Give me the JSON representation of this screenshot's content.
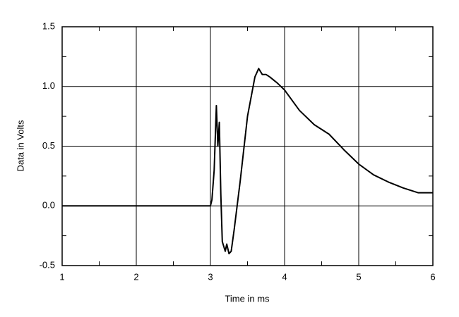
{
  "chart_data": {
    "type": "line",
    "x_label": "Time in ms",
    "y_label": "Data in Volts",
    "x": [
      1,
      3.0,
      3.02,
      3.05,
      3.08,
      3.1,
      3.12,
      3.14,
      3.16,
      3.2,
      3.22,
      3.25,
      3.28,
      3.32,
      3.4,
      3.5,
      3.6,
      3.65,
      3.7,
      3.75,
      3.8,
      3.9,
      4.0,
      4.2,
      4.4,
      4.6,
      4.8,
      5.0,
      5.2,
      5.4,
      5.6,
      5.8,
      6.0
    ],
    "series": [
      {
        "color": "#000000",
        "values": [
          0,
          0,
          0.05,
          0.3,
          0.84,
          0.5,
          0.7,
          0.1,
          -0.3,
          -0.38,
          -0.32,
          -0.4,
          -0.38,
          -0.2,
          0.2,
          0.75,
          1.08,
          1.15,
          1.1,
          1.1,
          1.08,
          1.03,
          0.97,
          0.8,
          0.68,
          0.6,
          0.47,
          0.35,
          0.26,
          0.2,
          0.15,
          0.11,
          0.11
        ]
      }
    ],
    "xlim": [
      1,
      6
    ],
    "xticks": [
      1,
      2,
      3,
      4,
      5,
      6
    ],
    "ylim": [
      -0.5,
      1.5
    ],
    "yticks": [
      -0.5,
      {
        "value": 0,
        "label": "0.0"
      },
      0.5,
      {
        "value": 1,
        "label": "1.0"
      },
      1.5
    ],
    "grid": true
  }
}
